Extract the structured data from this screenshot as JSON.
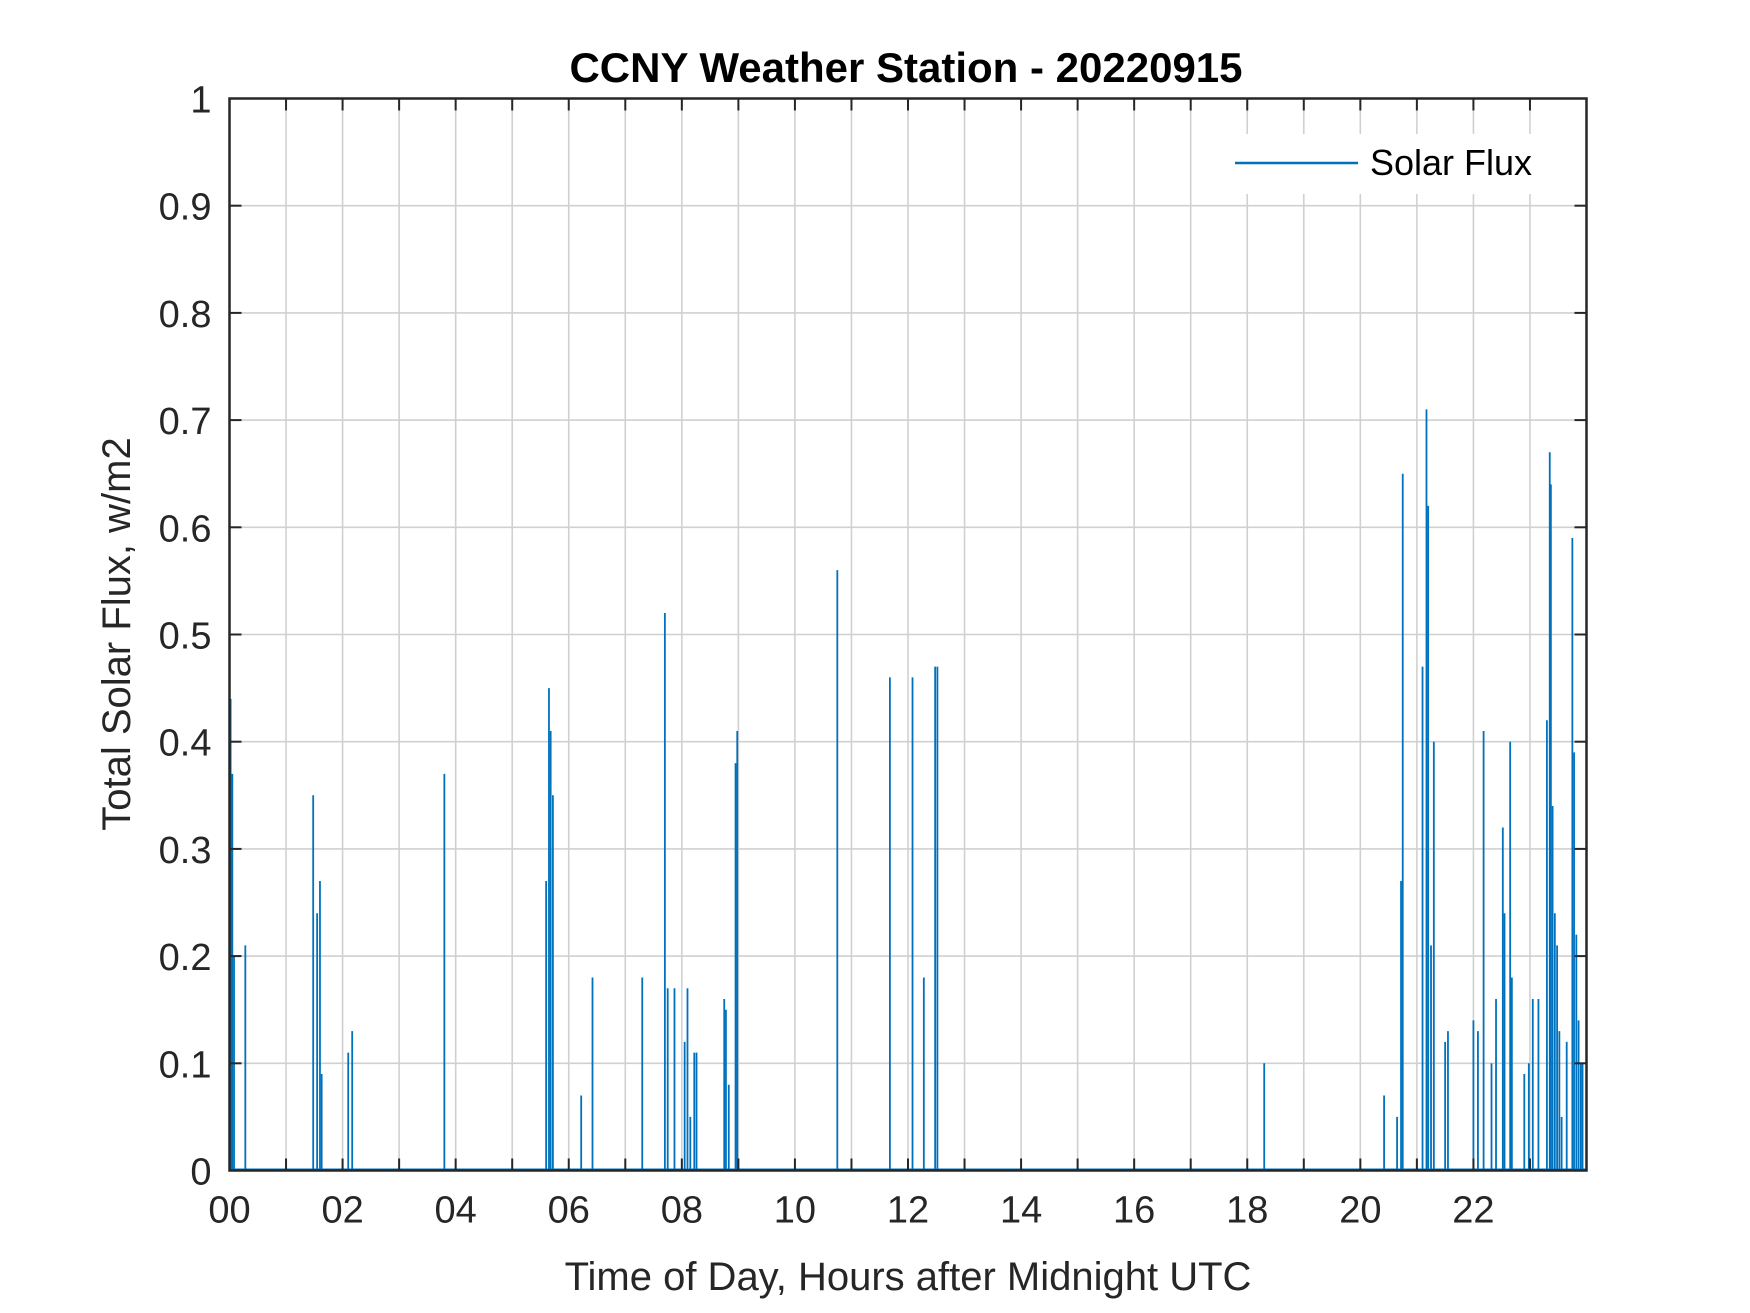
{
  "chart_data": {
    "type": "line",
    "title": "CCNY Weather Station - 20220915",
    "xlabel": "Time of Day, Hours after Midnight UTC",
    "ylabel": "Total Solar Flux, w/m2",
    "xlim": [
      0,
      24
    ],
    "ylim": [
      0,
      1
    ],
    "xticks": [
      0,
      2,
      4,
      6,
      8,
      10,
      12,
      14,
      16,
      18,
      20,
      22
    ],
    "xtick_labels": [
      "00",
      "02",
      "04",
      "06",
      "08",
      "10",
      "12",
      "14",
      "16",
      "18",
      "20",
      "22"
    ],
    "yticks": [
      0,
      0.1,
      0.2,
      0.3,
      0.4,
      0.5,
      0.6,
      0.7,
      0.8,
      0.9,
      1
    ],
    "ytick_labels": [
      "0",
      "0.1",
      "0.2",
      "0.3",
      "0.4",
      "0.5",
      "0.6",
      "0.7",
      "0.8",
      "0.9",
      "1"
    ],
    "grid": true,
    "legend_position": "top-right",
    "colors": {
      "series": "#0072bd",
      "grid": "#d0d0d0",
      "axis": "#262626"
    },
    "series": [
      {
        "name": "Solar Flux",
        "spikes": [
          [
            0.02,
            0.44
          ],
          [
            0.05,
            0.37
          ],
          [
            0.08,
            0.2
          ],
          [
            0.28,
            0.21
          ],
          [
            1.48,
            0.35
          ],
          [
            1.55,
            0.24
          ],
          [
            1.6,
            0.27
          ],
          [
            1.63,
            0.09
          ],
          [
            2.1,
            0.11
          ],
          [
            2.17,
            0.13
          ],
          [
            3.8,
            0.37
          ],
          [
            5.6,
            0.27
          ],
          [
            5.65,
            0.45
          ],
          [
            5.68,
            0.41
          ],
          [
            5.72,
            0.35
          ],
          [
            6.22,
            0.07
          ],
          [
            6.42,
            0.18
          ],
          [
            7.3,
            0.18
          ],
          [
            7.7,
            0.52
          ],
          [
            7.75,
            0.17
          ],
          [
            7.87,
            0.17
          ],
          [
            8.05,
            0.12
          ],
          [
            8.1,
            0.17
          ],
          [
            8.15,
            0.05
          ],
          [
            8.22,
            0.11
          ],
          [
            8.26,
            0.11
          ],
          [
            8.75,
            0.16
          ],
          [
            8.78,
            0.15
          ],
          [
            8.83,
            0.08
          ],
          [
            8.95,
            0.38
          ],
          [
            8.98,
            0.41
          ],
          [
            10.75,
            0.56
          ],
          [
            11.68,
            0.46
          ],
          [
            12.08,
            0.46
          ],
          [
            12.28,
            0.18
          ],
          [
            12.48,
            0.47
          ],
          [
            12.52,
            0.47
          ],
          [
            18.3,
            0.1
          ],
          [
            20.42,
            0.07
          ],
          [
            20.65,
            0.05
          ],
          [
            20.72,
            0.27
          ],
          [
            20.75,
            0.65
          ],
          [
            21.1,
            0.47
          ],
          [
            21.17,
            0.71
          ],
          [
            21.2,
            0.62
          ],
          [
            21.25,
            0.21
          ],
          [
            21.3,
            0.4
          ],
          [
            21.5,
            0.12
          ],
          [
            21.55,
            0.13
          ],
          [
            22.0,
            0.14
          ],
          [
            22.08,
            0.13
          ],
          [
            22.18,
            0.41
          ],
          [
            22.32,
            0.1
          ],
          [
            22.4,
            0.16
          ],
          [
            22.52,
            0.32
          ],
          [
            22.55,
            0.24
          ],
          [
            22.65,
            0.4
          ],
          [
            22.68,
            0.18
          ],
          [
            22.9,
            0.09
          ],
          [
            22.98,
            0.1
          ],
          [
            23.05,
            0.16
          ],
          [
            23.15,
            0.16
          ],
          [
            23.3,
            0.42
          ],
          [
            23.35,
            0.67
          ],
          [
            23.37,
            0.64
          ],
          [
            23.4,
            0.34
          ],
          [
            23.44,
            0.24
          ],
          [
            23.48,
            0.21
          ],
          [
            23.52,
            0.13
          ],
          [
            23.56,
            0.05
          ],
          [
            23.65,
            0.12
          ],
          [
            23.75,
            0.59
          ],
          [
            23.78,
            0.39
          ],
          [
            23.82,
            0.22
          ],
          [
            23.86,
            0.14
          ],
          [
            23.9,
            0.1
          ],
          [
            23.93,
            0.1
          ]
        ]
      }
    ]
  }
}
